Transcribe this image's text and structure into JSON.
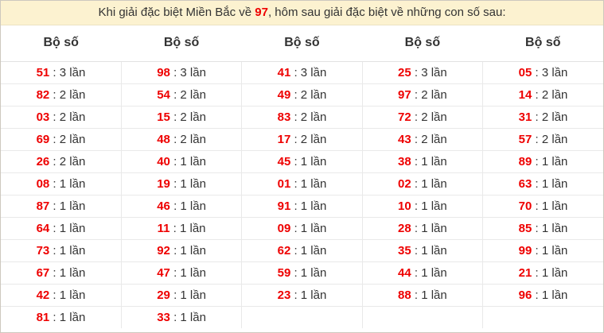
{
  "title": {
    "prefix": "Khi giải đặc biệt Miền Bắc về ",
    "highlight": "97",
    "suffix": ", hôm sau giải đặc biệt về những con số sau:"
  },
  "labels": {
    "separator": ":",
    "times_word": "lần",
    "column_header": "Bộ số"
  },
  "colors": {
    "accent_red": "#ee0000",
    "title_bg": "#fcf2d0",
    "text": "#333333",
    "border": "#e9e9e9"
  },
  "table": {
    "column_count": 5,
    "row_count": 12,
    "columns": [
      {
        "cells": [
          {
            "n": "51",
            "t": "3"
          },
          {
            "n": "82",
            "t": "2"
          },
          {
            "n": "03",
            "t": "2"
          },
          {
            "n": "69",
            "t": "2"
          },
          {
            "n": "26",
            "t": "2"
          },
          {
            "n": "08",
            "t": "1"
          },
          {
            "n": "87",
            "t": "1"
          },
          {
            "n": "64",
            "t": "1"
          },
          {
            "n": "73",
            "t": "1"
          },
          {
            "n": "67",
            "t": "1"
          },
          {
            "n": "42",
            "t": "1"
          },
          {
            "n": "81",
            "t": "1"
          }
        ]
      },
      {
        "cells": [
          {
            "n": "98",
            "t": "3"
          },
          {
            "n": "54",
            "t": "2"
          },
          {
            "n": "15",
            "t": "2"
          },
          {
            "n": "48",
            "t": "2"
          },
          {
            "n": "40",
            "t": "1"
          },
          {
            "n": "19",
            "t": "1"
          },
          {
            "n": "46",
            "t": "1"
          },
          {
            "n": "11",
            "t": "1"
          },
          {
            "n": "92",
            "t": "1"
          },
          {
            "n": "47",
            "t": "1"
          },
          {
            "n": "29",
            "t": "1"
          },
          {
            "n": "33",
            "t": "1"
          }
        ]
      },
      {
        "cells": [
          {
            "n": "41",
            "t": "3"
          },
          {
            "n": "49",
            "t": "2"
          },
          {
            "n": "83",
            "t": "2"
          },
          {
            "n": "17",
            "t": "2"
          },
          {
            "n": "45",
            "t": "1"
          },
          {
            "n": "01",
            "t": "1"
          },
          {
            "n": "91",
            "t": "1"
          },
          {
            "n": "09",
            "t": "1"
          },
          {
            "n": "62",
            "t": "1"
          },
          {
            "n": "59",
            "t": "1"
          },
          {
            "n": "23",
            "t": "1"
          }
        ]
      },
      {
        "cells": [
          {
            "n": "25",
            "t": "3"
          },
          {
            "n": "97",
            "t": "2"
          },
          {
            "n": "72",
            "t": "2"
          },
          {
            "n": "43",
            "t": "2"
          },
          {
            "n": "38",
            "t": "1"
          },
          {
            "n": "02",
            "t": "1"
          },
          {
            "n": "10",
            "t": "1"
          },
          {
            "n": "28",
            "t": "1"
          },
          {
            "n": "35",
            "t": "1"
          },
          {
            "n": "44",
            "t": "1"
          },
          {
            "n": "88",
            "t": "1"
          }
        ]
      },
      {
        "cells": [
          {
            "n": "05",
            "t": "3"
          },
          {
            "n": "14",
            "t": "2"
          },
          {
            "n": "31",
            "t": "2"
          },
          {
            "n": "57",
            "t": "2"
          },
          {
            "n": "89",
            "t": "1"
          },
          {
            "n": "63",
            "t": "1"
          },
          {
            "n": "70",
            "t": "1"
          },
          {
            "n": "85",
            "t": "1"
          },
          {
            "n": "99",
            "t": "1"
          },
          {
            "n": "21",
            "t": "1"
          },
          {
            "n": "96",
            "t": "1"
          }
        ]
      }
    ]
  }
}
